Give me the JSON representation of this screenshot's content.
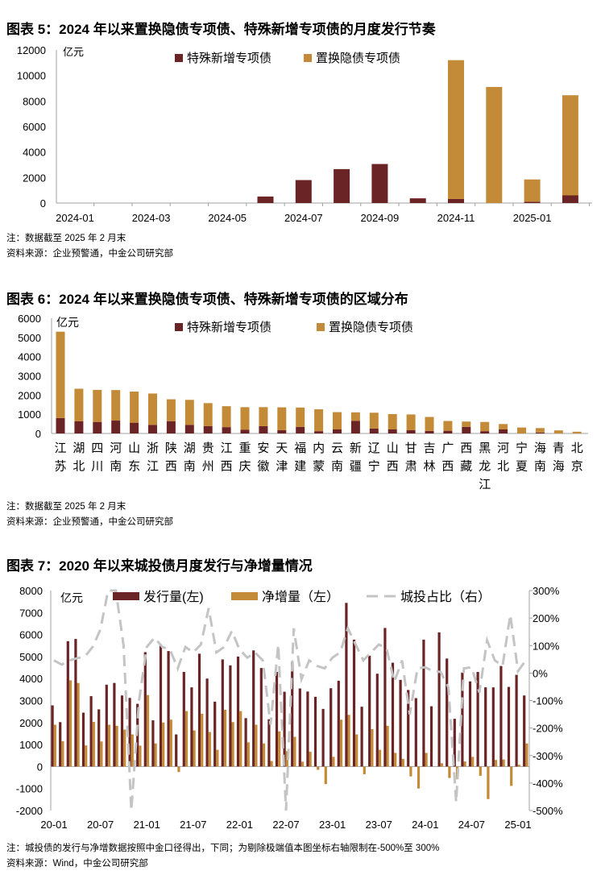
{
  "colors": {
    "special": "#6B2425",
    "replace": "#C38A37",
    "issue": "#6B2425",
    "net": "#C38A37",
    "ratio": "#C4C4C4",
    "axis": "#A0A0A0"
  },
  "fig5": {
    "title": "图表 5：2024 年以来置换隐债专项债、特殊新增专项债的月度发行节奏",
    "note": "注：数据截至 2025 年 2 月末",
    "source": "资料来源：企业预警通，中金公司研究部"
  },
  "fig6": {
    "title": "图表 6：2024 年以来置换隐债专项债、特殊新增专项债的区域分布",
    "note": "注：数据截至 2025 年 2 月末",
    "source": "资料来源：企业预警通，中金公司研究部"
  },
  "fig7": {
    "title": "图表 7：2020 年以来城投债月度发行与净增量情况",
    "note": "注：城投债的发行与净增数据按照中金口径得出，下同；为剔除极端值本图坐标右轴限制在-500%至 300%",
    "source": "资料来源：Wind，中金公司研究部"
  },
  "chart_data": [
    {
      "type": "bar",
      "stacked": true,
      "unit": "亿元",
      "categories": [
        "2024-01",
        "2024-02",
        "2024-03",
        "2024-04",
        "2024-05",
        "2024-06",
        "2024-07",
        "2024-08",
        "2024-09",
        "2024-10",
        "2024-11",
        "2024-12",
        "2025-01",
        "2025-02"
      ],
      "tick_labels": [
        "2024-01",
        "2024-03",
        "2024-05",
        "2024-07",
        "2024-09",
        "2024-11",
        "2025-01"
      ],
      "series": [
        {
          "name": "特殊新增专项债",
          "values": [
            0,
            0,
            0,
            0,
            0,
            510,
            1800,
            2660,
            3060,
            370,
            320,
            0,
            100,
            600
          ]
        },
        {
          "name": "置换隐债专项债",
          "values": [
            0,
            0,
            0,
            0,
            0,
            0,
            0,
            0,
            0,
            0,
            10880,
            9100,
            1750,
            7850
          ]
        }
      ],
      "ylim": [
        0,
        12000
      ],
      "yticks": [
        0,
        2000,
        4000,
        6000,
        8000,
        10000,
        12000
      ],
      "legend": "top-center",
      "grid": false
    },
    {
      "type": "bar",
      "stacked": true,
      "unit": "亿元",
      "categories": [
        "江苏",
        "湖北",
        "四川",
        "河南",
        "山东",
        "浙江",
        "陕西",
        "湖南",
        "贵州",
        "江西",
        "重庆",
        "安徽",
        "天津",
        "福建",
        "内蒙",
        "云南",
        "新疆",
        "辽宁",
        "山西",
        "甘肃",
        "吉林",
        "广西",
        "西藏",
        "黑龙江",
        "河北",
        "宁夏",
        "海南",
        "青海",
        "北京"
      ],
      "series": [
        {
          "name": "特殊新增专项债",
          "values": [
            800,
            630,
            600,
            670,
            560,
            450,
            640,
            450,
            380,
            330,
            200,
            380,
            170,
            340,
            120,
            210,
            660,
            260,
            210,
            170,
            130,
            140,
            340,
            120,
            210,
            0,
            50,
            0,
            0
          ]
        },
        {
          "name": "置换隐债专项债",
          "values": [
            4500,
            1700,
            1670,
            1590,
            1620,
            1630,
            1140,
            1300,
            1200,
            1090,
            1170,
            990,
            1190,
            1010,
            1140,
            900,
            440,
            820,
            800,
            820,
            730,
            510,
            280,
            480,
            280,
            310,
            230,
            160,
            90
          ]
        }
      ],
      "ylim": [
        0,
        6000
      ],
      "yticks": [
        0,
        1000,
        2000,
        3000,
        4000,
        5000,
        6000
      ],
      "legend": "top-center",
      "grid": false
    },
    {
      "type": "bar+line",
      "unit": "亿元",
      "categories": [
        "20-01",
        "20-02",
        "20-03",
        "20-04",
        "20-05",
        "20-06",
        "20-07",
        "20-08",
        "20-09",
        "20-10",
        "20-11",
        "20-12",
        "21-01",
        "21-02",
        "21-03",
        "21-04",
        "21-05",
        "21-06",
        "21-07",
        "21-08",
        "21-09",
        "21-10",
        "21-11",
        "21-12",
        "22-01",
        "22-02",
        "22-03",
        "22-04",
        "22-05",
        "22-06",
        "22-07",
        "22-08",
        "22-09",
        "22-10",
        "22-11",
        "22-12",
        "23-01",
        "23-02",
        "23-03",
        "23-04",
        "23-05",
        "23-06",
        "23-07",
        "23-08",
        "23-09",
        "23-10",
        "23-11",
        "23-12",
        "24-01",
        "24-02",
        "24-03",
        "24-04",
        "24-05",
        "24-06",
        "24-07",
        "24-08",
        "24-09",
        "24-10",
        "24-11",
        "24-12",
        "25-01",
        "25-02"
      ],
      "tick_labels": [
        "20-01",
        "20-07",
        "21-01",
        "21-07",
        "22-01",
        "22-07",
        "23-01",
        "23-07",
        "24-01",
        "24-07",
        "25-01"
      ],
      "series": [
        {
          "name": "发行量(左)",
          "axis": "left",
          "kind": "bar",
          "values": [
            2780,
            2020,
            5700,
            5800,
            2450,
            3200,
            2600,
            3720,
            3800,
            3230,
            3120,
            2850,
            5200,
            2100,
            5550,
            5250,
            1460,
            4300,
            3600,
            5130,
            4000,
            2950,
            4870,
            4600,
            5000,
            2200,
            5280,
            4480,
            2150,
            4300,
            3400,
            4750,
            3550,
            3410,
            3170,
            2620,
            3560,
            3900,
            7440,
            5770,
            2720,
            5040,
            4220,
            6300,
            4720,
            3940,
            3480,
            3110,
            5770,
            2740,
            6100,
            4910,
            2170,
            4270,
            3870,
            4300,
            3600,
            3600,
            4570,
            3620,
            4170,
            3230
          ]
        },
        {
          "name": "净增量（左）",
          "axis": "left",
          "kind": "bar",
          "values": [
            1900,
            1150,
            3920,
            3800,
            960,
            2030,
            1140,
            1900,
            1850,
            1680,
            1460,
            950,
            3250,
            1050,
            2000,
            2130,
            -250,
            2520,
            1640,
            2400,
            1570,
            760,
            2580,
            2020,
            2520,
            1100,
            1900,
            1050,
            250,
            1600,
            700,
            1350,
            220,
            670,
            -150,
            -800,
            440,
            2130,
            2350,
            1460,
            -350,
            1700,
            760,
            1850,
            620,
            350,
            -450,
            -1000,
            620,
            0,
            150,
            -520,
            -580,
            230,
            440,
            -420,
            -1480,
            300,
            320,
            -880,
            80,
            1050
          ]
        },
        {
          "name": "城投占比（右）",
          "axis": "right",
          "kind": "line",
          "dash": true,
          "values": [
            46,
            31,
            46,
            54,
            60,
            95,
            158,
            300,
            300,
            100,
            -500,
            -100,
            95,
            129,
            95,
            85,
            17,
            95,
            75,
            104,
            236,
            75,
            95,
            153,
            85,
            56,
            75,
            46,
            -188,
            104,
            -500,
            163,
            -22,
            46,
            26,
            17,
            56,
            75,
            163,
            104,
            46,
            75,
            104,
            90,
            -32,
            46,
            -150,
            17,
            21,
            7,
            4,
            -52,
            -470,
            17,
            21,
            -71,
            119,
            46,
            26,
            212,
            7,
            46
          ]
        }
      ],
      "ylim_left": [
        -2000,
        8000
      ],
      "yticks_left": [
        -2000,
        -1000,
        0,
        1000,
        2000,
        3000,
        4000,
        5000,
        6000,
        7000,
        8000
      ],
      "ylim_right": [
        -500,
        300
      ],
      "yticks_right": [
        "-500%",
        "-400%",
        "-300%",
        "-200%",
        "-100%",
        "0%",
        "100%",
        "200%",
        "300%"
      ],
      "legend": "top-center",
      "grid": false
    }
  ]
}
